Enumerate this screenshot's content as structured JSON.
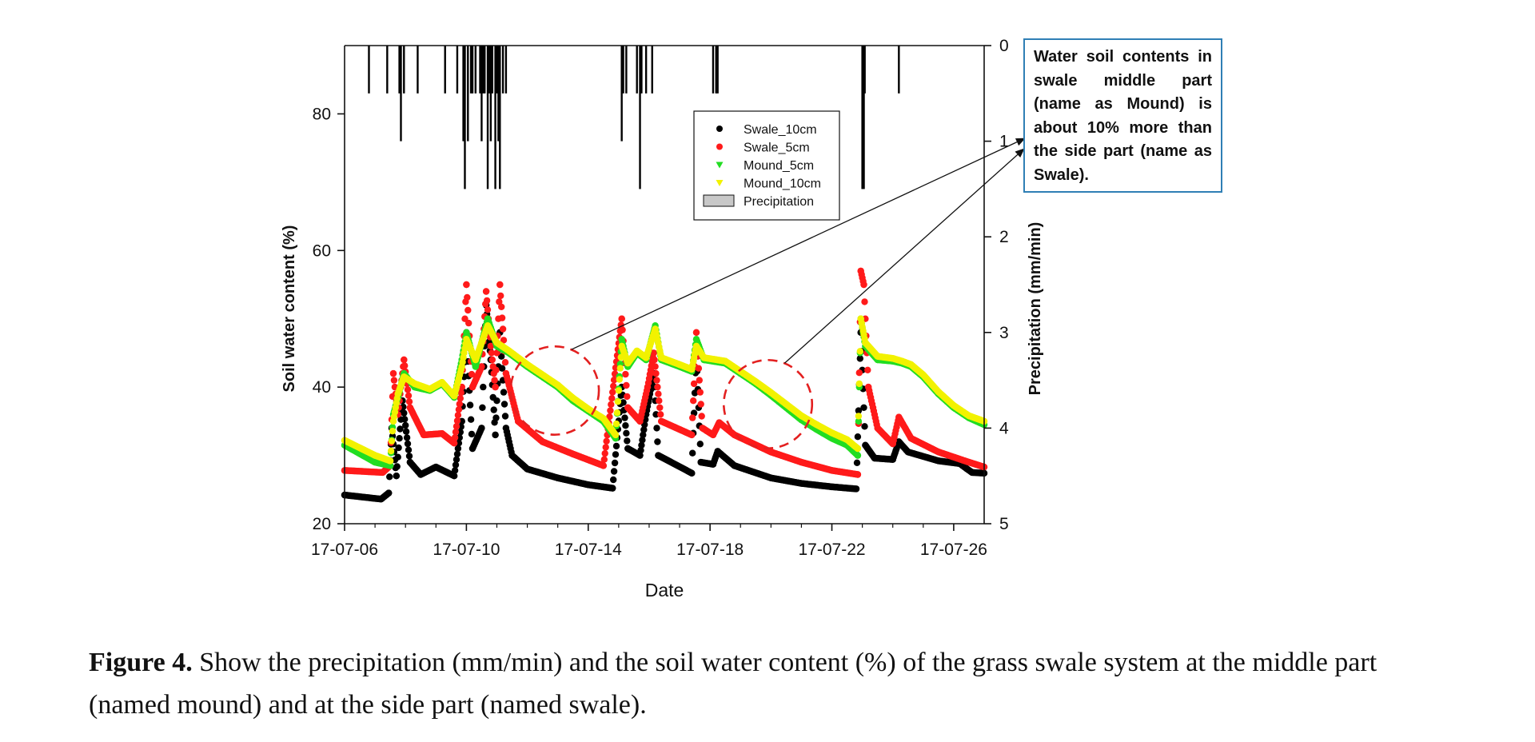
{
  "chart_data": {
    "type": "scatter",
    "xlabel": "Date",
    "ylabel": "Soil water content (%)",
    "y2label": "Precipitation (mm/min)",
    "x_ticks": [
      "17-07-06",
      "17-07-10",
      "17-07-14",
      "17-07-18",
      "17-07-22",
      "17-07-26"
    ],
    "x_tick_days": [
      0,
      4,
      8,
      12,
      16,
      20
    ],
    "xlim_days": [
      0,
      21
    ],
    "ylim": [
      20,
      90
    ],
    "y_ticks": [
      20,
      40,
      60,
      80
    ],
    "y2lim": [
      0,
      5
    ],
    "y2_ticks": [
      0,
      1,
      2,
      3,
      4,
      5
    ],
    "y2_inverted": true,
    "legend_position": "top-center",
    "legend": [
      {
        "label": "Swale_10cm",
        "color": "#000000",
        "marker": "circle"
      },
      {
        "label": "Swale_5cm",
        "color": "#ff1a1a",
        "marker": "circle"
      },
      {
        "label": "Mound_5cm",
        "color": "#22dd22",
        "marker": "triangle-down"
      },
      {
        "label": "Mound_10cm",
        "color": "#f2f200",
        "marker": "triangle-down"
      },
      {
        "label": "Precipitation",
        "color": "#c8c8c8",
        "marker": "box"
      }
    ],
    "series": [
      {
        "name": "Swale_10cm",
        "color": "#000000",
        "points": [
          [
            0,
            24.2
          ],
          [
            1.2,
            23.6
          ],
          [
            1.45,
            24.5
          ],
          [
            1.55,
            34
          ],
          [
            1.7,
            27
          ],
          [
            1.9,
            38
          ],
          [
            2.15,
            29
          ],
          [
            2.5,
            27.2
          ],
          [
            3.0,
            28.3
          ],
          [
            3.6,
            27
          ],
          [
            3.85,
            35
          ],
          [
            4.0,
            48
          ],
          [
            4.2,
            31
          ],
          [
            4.5,
            34
          ],
          [
            4.65,
            52
          ],
          [
            4.8,
            44
          ],
          [
            4.95,
            33
          ],
          [
            5.1,
            48
          ],
          [
            5.3,
            34
          ],
          [
            5.5,
            30
          ],
          [
            6.0,
            28
          ],
          [
            7.0,
            26.7
          ],
          [
            8.0,
            25.7
          ],
          [
            8.8,
            25.2
          ],
          [
            9.1,
            40
          ],
          [
            9.3,
            31
          ],
          [
            9.7,
            30
          ],
          [
            9.9,
            36
          ],
          [
            10.15,
            42
          ],
          [
            10.3,
            30
          ],
          [
            11.4,
            27.4
          ],
          [
            11.55,
            45
          ],
          [
            11.7,
            29
          ],
          [
            12.1,
            28.7
          ],
          [
            12.25,
            30.6
          ],
          [
            12.8,
            28.5
          ],
          [
            14.0,
            26.7
          ],
          [
            15.0,
            25.9
          ],
          [
            16.0,
            25.4
          ],
          [
            16.8,
            25.1
          ],
          [
            16.95,
            48
          ],
          [
            17.1,
            31.5
          ],
          [
            17.4,
            29.6
          ],
          [
            18.0,
            29.4
          ],
          [
            18.2,
            32
          ],
          [
            18.5,
            30.5
          ],
          [
            19.5,
            29.2
          ],
          [
            20.2,
            28.8
          ],
          [
            20.6,
            27.5
          ],
          [
            21,
            27.4
          ]
        ]
      },
      {
        "name": "Swale_5cm",
        "color": "#ff1a1a",
        "points": [
          [
            0,
            27.8
          ],
          [
            1.25,
            27.5
          ],
          [
            1.5,
            28.5
          ],
          [
            1.6,
            42
          ],
          [
            1.75,
            36
          ],
          [
            1.95,
            44
          ],
          [
            2.15,
            37
          ],
          [
            2.6,
            33
          ],
          [
            3.2,
            33.2
          ],
          [
            3.6,
            31.8
          ],
          [
            3.85,
            40
          ],
          [
            4.0,
            55
          ],
          [
            4.2,
            40
          ],
          [
            4.5,
            43
          ],
          [
            4.65,
            54
          ],
          [
            4.8,
            46
          ],
          [
            4.95,
            40
          ],
          [
            5.1,
            55
          ],
          [
            5.3,
            42
          ],
          [
            5.7,
            35
          ],
          [
            6.5,
            32
          ],
          [
            7.5,
            30.2
          ],
          [
            8.5,
            28.5
          ],
          [
            9.1,
            50
          ],
          [
            9.3,
            37
          ],
          [
            9.7,
            35
          ],
          [
            9.95,
            40
          ],
          [
            10.15,
            45
          ],
          [
            10.4,
            35
          ],
          [
            11.4,
            33
          ],
          [
            11.55,
            48
          ],
          [
            11.75,
            34
          ],
          [
            12.1,
            33
          ],
          [
            12.3,
            34.8
          ],
          [
            12.8,
            33
          ],
          [
            14.0,
            30.5
          ],
          [
            15.0,
            29
          ],
          [
            16.0,
            27.8
          ],
          [
            16.85,
            27.2
          ],
          [
            16.95,
            57
          ],
          [
            17.05,
            55
          ],
          [
            17.2,
            40
          ],
          [
            17.5,
            34
          ],
          [
            18.0,
            31.7
          ],
          [
            18.2,
            35.6
          ],
          [
            18.6,
            32.5
          ],
          [
            19.5,
            30.5
          ],
          [
            20.5,
            29
          ],
          [
            21,
            28.3
          ]
        ]
      },
      {
        "name": "Mound_5cm",
        "color": "#22dd22",
        "points": [
          [
            0,
            31.5
          ],
          [
            1.0,
            29
          ],
          [
            1.5,
            28.5
          ],
          [
            1.6,
            36
          ],
          [
            1.75,
            38.5
          ],
          [
            1.95,
            42
          ],
          [
            2.3,
            40
          ],
          [
            2.8,
            39.5
          ],
          [
            3.2,
            40.5
          ],
          [
            3.6,
            38.5
          ],
          [
            3.85,
            44
          ],
          [
            4.0,
            48
          ],
          [
            4.3,
            43
          ],
          [
            4.7,
            50
          ],
          [
            5.0,
            46
          ],
          [
            5.4,
            45
          ],
          [
            6.0,
            43
          ],
          [
            7.0,
            40
          ],
          [
            7.5,
            38
          ],
          [
            8.0,
            36.5
          ],
          [
            8.5,
            35
          ],
          [
            8.9,
            32.5
          ],
          [
            9.1,
            47
          ],
          [
            9.3,
            43
          ],
          [
            9.6,
            45
          ],
          [
            9.9,
            44
          ],
          [
            10.2,
            49
          ],
          [
            10.4,
            44
          ],
          [
            11.0,
            43
          ],
          [
            11.4,
            42.3
          ],
          [
            11.55,
            47
          ],
          [
            11.8,
            44
          ],
          [
            12.5,
            43.5
          ],
          [
            13.0,
            42
          ],
          [
            13.5,
            40.5
          ],
          [
            14.0,
            38.8
          ],
          [
            14.5,
            37
          ],
          [
            15.0,
            35.2
          ],
          [
            15.5,
            33.8
          ],
          [
            16.0,
            32.5
          ],
          [
            16.5,
            31.5
          ],
          [
            16.85,
            30
          ],
          [
            16.95,
            50
          ],
          [
            17.1,
            46
          ],
          [
            17.5,
            44
          ],
          [
            18.0,
            43.8
          ],
          [
            18.3,
            43.5
          ],
          [
            18.6,
            43
          ],
          [
            19.0,
            41.5
          ],
          [
            19.5,
            39
          ],
          [
            20.0,
            37
          ],
          [
            20.5,
            35.5
          ],
          [
            21,
            34.5
          ]
        ]
      },
      {
        "name": "Mound_10cm",
        "color": "#f2f200",
        "points": [
          [
            0,
            32.2
          ],
          [
            1.0,
            30
          ],
          [
            1.5,
            29.2
          ],
          [
            1.6,
            35
          ],
          [
            1.75,
            39
          ],
          [
            1.95,
            41.5
          ],
          [
            2.3,
            40.5
          ],
          [
            2.8,
            39.7
          ],
          [
            3.2,
            40.7
          ],
          [
            3.6,
            38.7
          ],
          [
            3.85,
            43
          ],
          [
            4.0,
            47
          ],
          [
            4.3,
            44
          ],
          [
            4.7,
            49
          ],
          [
            5.0,
            46.5
          ],
          [
            5.4,
            45.3
          ],
          [
            6.0,
            43.3
          ],
          [
            7.0,
            40.3
          ],
          [
            7.5,
            38.4
          ],
          [
            8.0,
            36.8
          ],
          [
            8.5,
            35.4
          ],
          [
            8.9,
            33
          ],
          [
            9.1,
            46
          ],
          [
            9.3,
            43.5
          ],
          [
            9.6,
            45.3
          ],
          [
            9.9,
            44.3
          ],
          [
            10.2,
            48.5
          ],
          [
            10.4,
            44.3
          ],
          [
            11.0,
            43.3
          ],
          [
            11.4,
            42.6
          ],
          [
            11.55,
            46
          ],
          [
            11.8,
            44.3
          ],
          [
            12.5,
            43.8
          ],
          [
            13.0,
            42.3
          ],
          [
            13.5,
            40.8
          ],
          [
            14.0,
            39.2
          ],
          [
            14.5,
            37.5
          ],
          [
            15.0,
            35.8
          ],
          [
            15.5,
            34.5
          ],
          [
            16.0,
            33.3
          ],
          [
            16.5,
            32.3
          ],
          [
            16.85,
            31
          ],
          [
            16.95,
            50
          ],
          [
            17.1,
            46.5
          ],
          [
            17.5,
            44.5
          ],
          [
            18.0,
            44.2
          ],
          [
            18.3,
            43.8
          ],
          [
            18.6,
            43.3
          ],
          [
            19.0,
            41.8
          ],
          [
            19.5,
            39.3
          ],
          [
            20.0,
            37.3
          ],
          [
            20.5,
            35.8
          ],
          [
            21,
            35
          ]
        ]
      }
    ],
    "precipitation": {
      "name": "Precipitation",
      "color": "#000000",
      "bars": [
        [
          0.8,
          0.5
        ],
        [
          1.4,
          0.5
        ],
        [
          1.8,
          0.5
        ],
        [
          1.85,
          1.0
        ],
        [
          1.95,
          0.5
        ],
        [
          2.4,
          0.5
        ],
        [
          3.3,
          0.5
        ],
        [
          3.7,
          0.5
        ],
        [
          3.9,
          1.0
        ],
        [
          3.95,
          1.5
        ],
        [
          4.05,
          1.0
        ],
        [
          4.15,
          0.5
        ],
        [
          4.2,
          0.5
        ],
        [
          4.3,
          0.5
        ],
        [
          4.45,
          0.5
        ],
        [
          4.5,
          1.0
        ],
        [
          4.55,
          0.5
        ],
        [
          4.6,
          0.5
        ],
        [
          4.7,
          1.5
        ],
        [
          4.75,
          0.5
        ],
        [
          4.8,
          1.0
        ],
        [
          4.85,
          0.5
        ],
        [
          4.95,
          1.5
        ],
        [
          5.0,
          0.5
        ],
        [
          5.05,
          1.0
        ],
        [
          5.1,
          1.5
        ],
        [
          5.2,
          0.5
        ],
        [
          5.3,
          0.5
        ],
        [
          9.1,
          1.0
        ],
        [
          9.15,
          0.5
        ],
        [
          9.25,
          0.5
        ],
        [
          9.6,
          0.5
        ],
        [
          9.7,
          1.5
        ],
        [
          9.75,
          0.5
        ],
        [
          9.9,
          0.5
        ],
        [
          10.1,
          0.5
        ],
        [
          12.1,
          0.5
        ],
        [
          12.2,
          0.5
        ],
        [
          12.25,
          0.5
        ],
        [
          17.0,
          1.5
        ],
        [
          17.02,
          0.5
        ],
        [
          17.05,
          1.5
        ],
        [
          17.08,
          0.5
        ],
        [
          18.2,
          0.5
        ]
      ]
    },
    "annotation_circles": [
      {
        "center_day": 6.9,
        "center_y": 39.5,
        "radius_days": 1.45
      },
      {
        "center_day": 13.9,
        "center_y": 37.5,
        "radius_days": 1.45
      }
    ]
  },
  "annotation": {
    "text": "Water soil contents in swale middle part (name as Mound) is about 10% more than the side part (name as Swale)."
  },
  "caption": {
    "label": "Figure 4.",
    "text": " Show the precipitation (mm/min) and the soil water content (%) of the grass swale system at the middle part (named mound) and at the side part (named swale)."
  }
}
